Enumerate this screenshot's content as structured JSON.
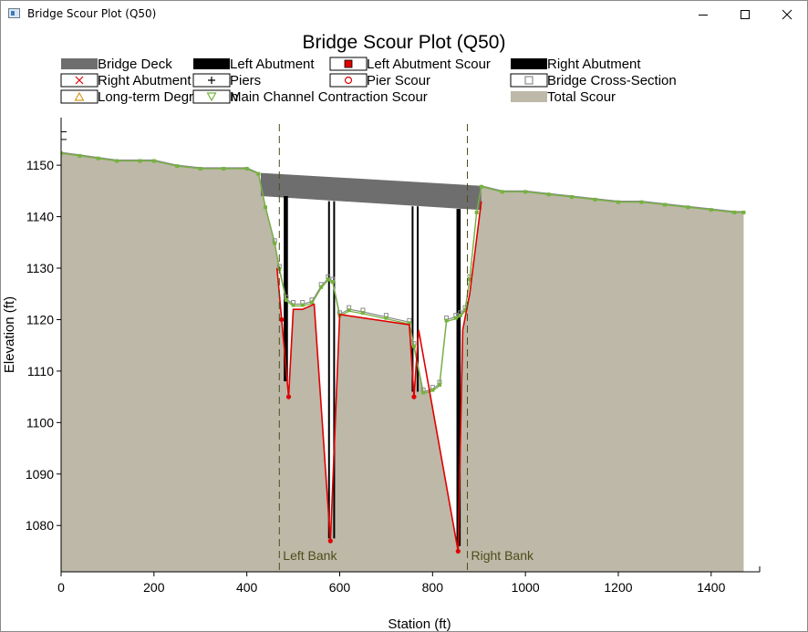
{
  "window": {
    "title": "Bridge Scour Plot (Q50)",
    "minimize_icon": "minimize-icon",
    "maximize_icon": "maximize-icon",
    "close_icon": "close-icon"
  },
  "chart_data": {
    "type": "area",
    "title": "Bridge Scour Plot (Q50)",
    "xlabel": "Station (ft)",
    "ylabel": "Elevation (ft)",
    "xlim": [
      0,
      1475
    ],
    "ylim": [
      1071,
      1158
    ],
    "xticks": [
      0,
      200,
      400,
      600,
      800,
      1000,
      1200,
      1400
    ],
    "yticks": [
      1080,
      1090,
      1100,
      1110,
      1120,
      1130,
      1140,
      1150
    ],
    "grid": false,
    "legend_position": "top",
    "legend": [
      {
        "label": "Bridge Deck",
        "symbol": "swatch",
        "color": "#6e6e6e"
      },
      {
        "label": "Left Abutment",
        "symbol": "swatch",
        "color": "#000000"
      },
      {
        "label": "Left Abutment Scour",
        "symbol": "filled-square",
        "color": "#e00000"
      },
      {
        "label": "Right Abutment",
        "symbol": "swatch",
        "color": "#000000"
      },
      {
        "label": "Right Abutment Scour",
        "symbol": "x",
        "color": "#e00000"
      },
      {
        "label": "Piers",
        "symbol": "plus",
        "color": "#000000"
      },
      {
        "label": "Pier Scour",
        "symbol": "circle",
        "color": "#e00000"
      },
      {
        "label": "Bridge Cross-Section",
        "symbol": "square",
        "color": "#8c8c8c"
      },
      {
        "label": "Long-term Degradation",
        "symbol": "triangle-up",
        "color": "#d99a1c"
      },
      {
        "label": "Main Channel Contraction Scour",
        "symbol": "triangle-down",
        "color": "#74b33c"
      },
      {
        "label": "Total Scour",
        "symbol": "swatch",
        "color": "#bdb8a8"
      }
    ],
    "colors": {
      "ground_fill": "#bdb8a8",
      "scour_line": "#e00000",
      "contraction_line": "#74b33c",
      "deck": "#6e6e6e",
      "bank_line": "#4d4d1a"
    },
    "bank_stations": [
      {
        "label": "Left Bank",
        "x": 470
      },
      {
        "label": "Right Bank",
        "x": 875
      }
    ],
    "deck": {
      "x": [
        430,
        905
      ],
      "high_chord": [
        1148.5,
        1146
      ],
      "low_chord": [
        1144,
        1141.3
      ]
    },
    "abutments": [
      {
        "side": "left",
        "x": [
          478,
          490
        ],
        "top": 1144,
        "bottom": 1108
      },
      {
        "side": "right",
        "x": [
          850,
          862
        ],
        "top": 1141.5,
        "bottom": 1076
      }
    ],
    "piers": [
      {
        "x": [
          575,
          590
        ],
        "top": 1143,
        "bottom": 1077.5
      },
      {
        "x": [
          755,
          770
        ],
        "top": 1142,
        "bottom": 1106
      }
    ],
    "ground": {
      "x": [
        0,
        40,
        80,
        120,
        170,
        200,
        250,
        300,
        350,
        400,
        425,
        440,
        460,
        470,
        485,
        500,
        520,
        540,
        560,
        575,
        585,
        600,
        620,
        650,
        700,
        750,
        760,
        780,
        800,
        815,
        830,
        850,
        860,
        870,
        880,
        895,
        905,
        950,
        1000,
        1050,
        1100,
        1150,
        1200,
        1250,
        1300,
        1350,
        1400,
        1450,
        1470
      ],
      "y": [
        1152.5,
        1152,
        1151.5,
        1151,
        1151,
        1151,
        1150,
        1149.5,
        1149.5,
        1149.5,
        1148.5,
        1142,
        1135,
        1130,
        1124,
        1123,
        1123,
        1123.5,
        1126.5,
        1128,
        1127.5,
        1121,
        1122,
        1121.5,
        1120.5,
        1119.5,
        1115,
        1106,
        1106.5,
        1107.5,
        1120,
        1120.5,
        1121,
        1122,
        1128,
        1141,
        1146,
        1145,
        1145,
        1144.5,
        1144,
        1143.5,
        1143,
        1143,
        1142.5,
        1142,
        1141.5,
        1141,
        1141
      ]
    },
    "scour": {
      "x": [
        465,
        475,
        490,
        500,
        520,
        545,
        580,
        600,
        750,
        760,
        770,
        855,
        865,
        880,
        905
      ],
      "y": [
        1130,
        1120,
        1105,
        1122,
        1122,
        1123,
        1077,
        1121,
        1119,
        1105,
        1118,
        1075,
        1118,
        1125,
        1143
      ]
    },
    "tick_marks_left_margin": [
      1156.5,
      1155
    ]
  }
}
